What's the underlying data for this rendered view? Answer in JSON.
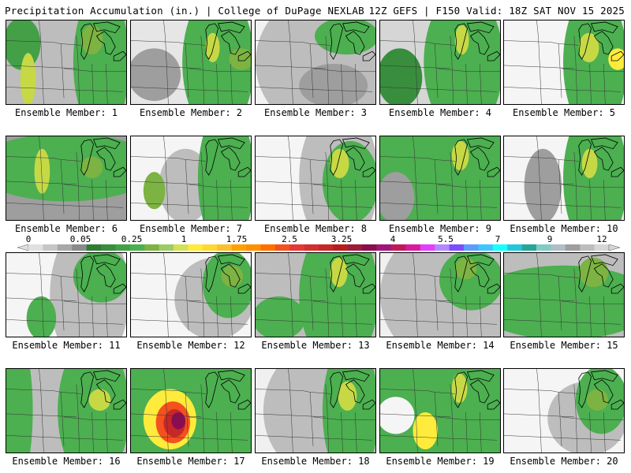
{
  "header": {
    "title": "Precipitation Accumulation (in.) | College of DuPage NEXLAB",
    "run_info": "12Z GEFS | F150 Valid: 18Z SAT NOV 15 2025"
  },
  "colorbar": {
    "tick_labels": [
      "0",
      "0.05",
      "0.25",
      "1",
      "1.75",
      "2.5",
      "3.25",
      "4",
      "5.5",
      "7",
      "9",
      "12"
    ],
    "colors": [
      "#e0e0e0",
      "#c6c6c6",
      "#a8a8a8",
      "#8a8a8a",
      "#2e7d32",
      "#388e3c",
      "#43a047",
      "#4caf50",
      "#7cb342",
      "#9ccc65",
      "#d4e157",
      "#ffeb3b",
      "#fdd835",
      "#fbc02d",
      "#ffa000",
      "#ff8f00",
      "#ff6f00",
      "#f4511e",
      "#e53935",
      "#d32f2f",
      "#c62828",
      "#b71c1c",
      "#9c1b3a",
      "#880e4f",
      "#a0167a",
      "#c2185b",
      "#d81b9c",
      "#e040fb",
      "#b388ff",
      "#7c4dff",
      "#5c9cff",
      "#40c4ff",
      "#18ffff",
      "#26c6da",
      "#26a69a",
      "#80cbc4",
      "#b0bec5",
      "#9e9e9e",
      "#bdbdbd",
      "#d6d6d6"
    ]
  },
  "members": [
    {
      "label": "Ensemble Member: 1"
    },
    {
      "label": "Ensemble Member: 2"
    },
    {
      "label": "Ensemble Member: 3"
    },
    {
      "label": "Ensemble Member: 4"
    },
    {
      "label": "Ensemble Member: 5"
    },
    {
      "label": "Ensemble Member: 6"
    },
    {
      "label": "Ensemble Member: 7"
    },
    {
      "label": "Ensemble Member: 8"
    },
    {
      "label": "Ensemble Member: 9"
    },
    {
      "label": "Ensemble Member: 10"
    },
    {
      "label": "Ensemble Member: 11"
    },
    {
      "label": "Ensemble Member: 12"
    },
    {
      "label": "Ensemble Member: 13"
    },
    {
      "label": "Ensemble Member: 14"
    },
    {
      "label": "Ensemble Member: 15"
    },
    {
      "label": "Ensemble Member: 16"
    },
    {
      "label": "Ensemble Member: 17"
    },
    {
      "label": "Ensemble Member: 18"
    },
    {
      "label": "Ensemble Member: 19"
    },
    {
      "label": "Ensemble Member: 20"
    }
  ]
}
